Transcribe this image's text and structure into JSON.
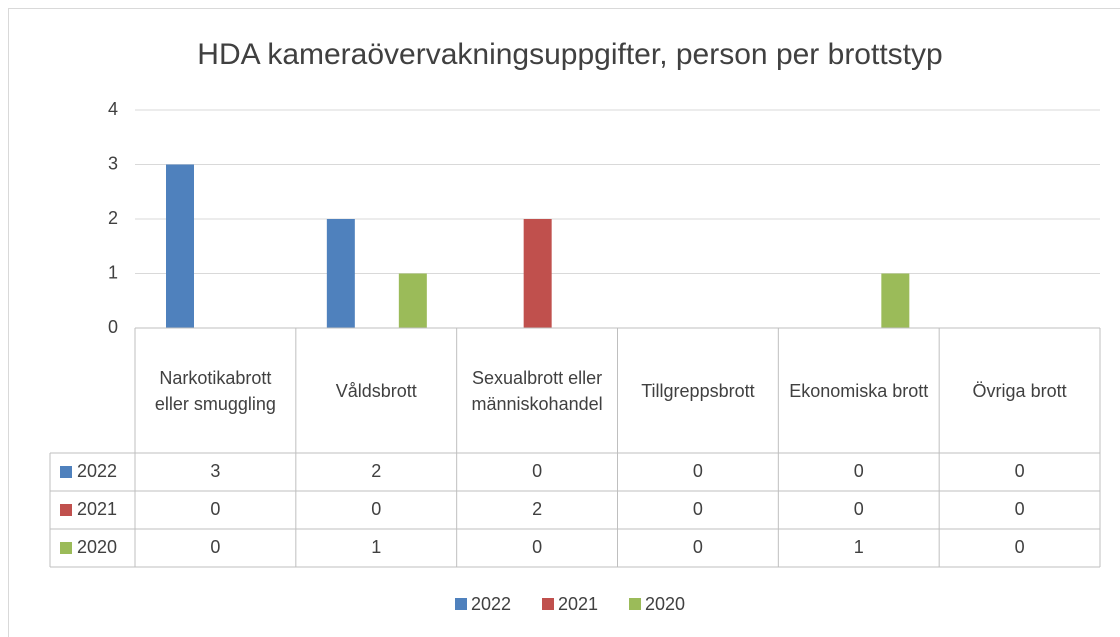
{
  "chart_data": {
    "type": "bar",
    "title": "HDA kameraövervakningsuppgifter, person per brottstyp",
    "categories": [
      "Narkotikabrott eller smuggling",
      "Våldsbrott",
      "Sexualbrott eller människohandel",
      "Tillgreppsbrott",
      "Ekonomiska brott",
      "Övriga brott"
    ],
    "series": [
      {
        "name": "2022",
        "color": "#4f81bd",
        "values": [
          3,
          2,
          0,
          0,
          0,
          0
        ]
      },
      {
        "name": "2021",
        "color": "#c0504d",
        "values": [
          0,
          0,
          2,
          0,
          0,
          0
        ]
      },
      {
        "name": "2020",
        "color": "#9bbb59",
        "values": [
          0,
          1,
          0,
          0,
          1,
          0
        ]
      }
    ],
    "ylim": [
      0,
      4
    ],
    "yticks": [
      0,
      1,
      2,
      3,
      4
    ],
    "grid": true
  }
}
